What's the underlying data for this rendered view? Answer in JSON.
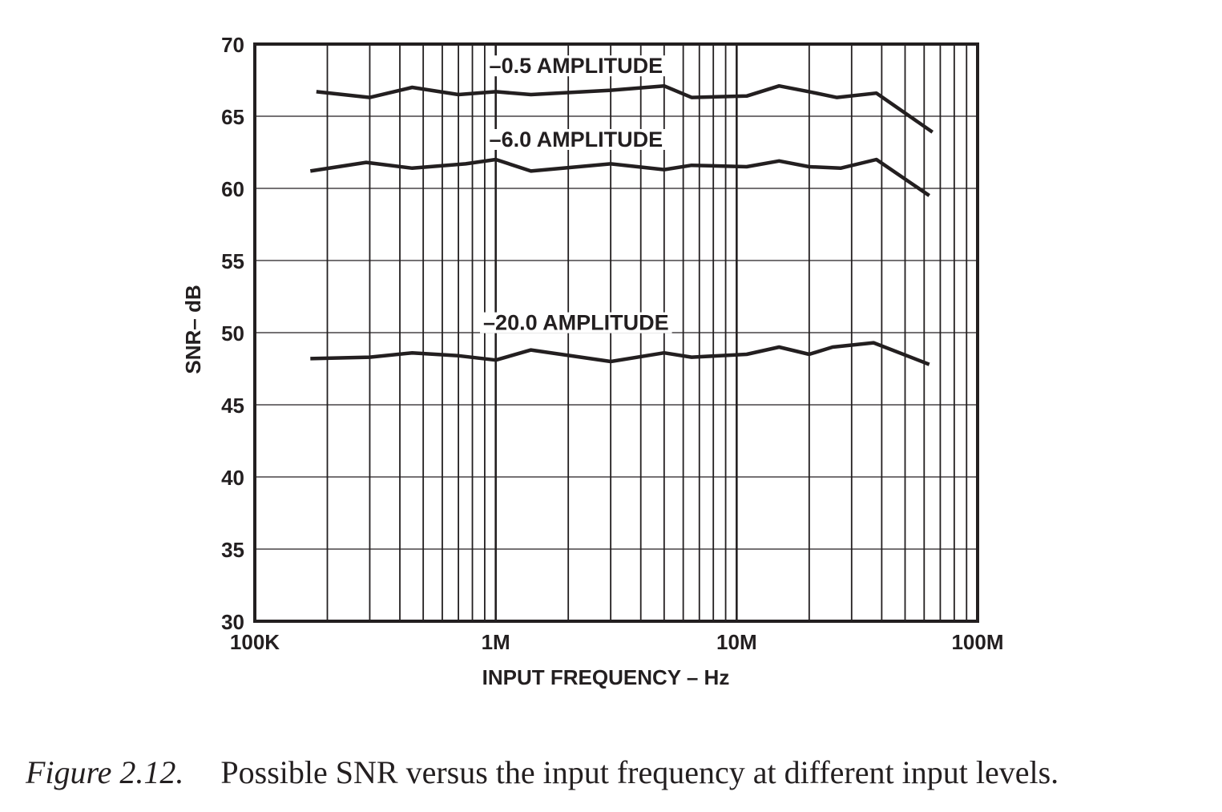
{
  "chart_data": {
    "type": "line",
    "xscale": "log",
    "xlim": [
      100000,
      100000000
    ],
    "ylim": [
      30,
      70
    ],
    "yticks": [
      30,
      35,
      40,
      45,
      50,
      55,
      60,
      65,
      70
    ],
    "xtick_values": [
      100000,
      1000000,
      10000000,
      100000000
    ],
    "xtick_labels": [
      "100K",
      "1M",
      "10M",
      "100M"
    ],
    "xlabel": "INPUT FREQUENCY – Hz",
    "ylabel": "SNR– dB",
    "grid": true,
    "series": [
      {
        "name": "–0.5 AMPLITUDE",
        "x": [
          180000,
          300000,
          450000,
          700000,
          1000000,
          1400000,
          3000000,
          5000000,
          6500000,
          11000000,
          15000000,
          20000000,
          26000000,
          38000000,
          65000000
        ],
        "y": [
          66.7,
          66.3,
          67.0,
          66.5,
          66.7,
          66.5,
          66.8,
          67.1,
          66.3,
          66.4,
          67.1,
          66.7,
          66.3,
          66.6,
          63.9
        ]
      },
      {
        "name": "–6.0 AMPLITUDE",
        "x": [
          170000,
          290000,
          450000,
          750000,
          1000000,
          1400000,
          3000000,
          5000000,
          6500000,
          11000000,
          15000000,
          20000000,
          27000000,
          38000000,
          63000000
        ],
        "y": [
          61.2,
          61.8,
          61.4,
          61.7,
          62.0,
          61.2,
          61.7,
          61.3,
          61.6,
          61.5,
          61.9,
          61.5,
          61.4,
          62.0,
          59.5
        ]
      },
      {
        "name": "–20.0 AMPLITUDE",
        "x": [
          170000,
          300000,
          450000,
          700000,
          1000000,
          1400000,
          3000000,
          5000000,
          6500000,
          11000000,
          15000000,
          20000000,
          25000000,
          37000000,
          63000000
        ],
        "y": [
          48.2,
          48.3,
          48.6,
          48.4,
          48.1,
          48.8,
          48.0,
          48.6,
          48.3,
          48.5,
          49.0,
          48.5,
          49.0,
          49.3,
          47.8
        ]
      }
    ]
  },
  "caption": {
    "figure_number": "Figure 2.12.",
    "text": "Possible SNR versus the input frequency at different input levels."
  }
}
